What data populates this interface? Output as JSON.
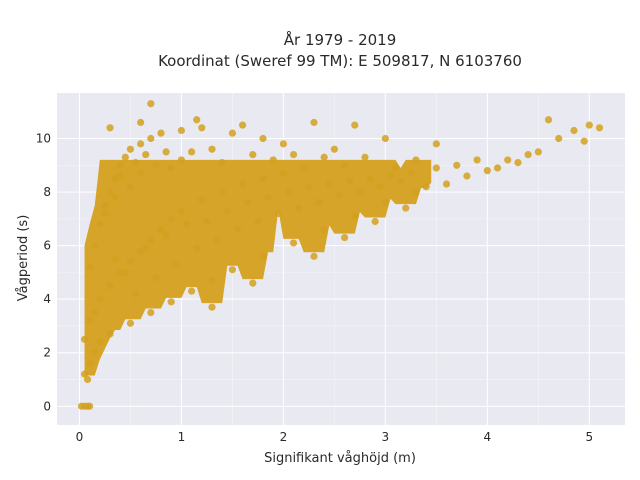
{
  "chart_data": {
    "type": "scatter",
    "title_lines": [
      "År 1979 - 2019",
      "Koordinat (Sweref 99 TM): E 509817, N 6103760"
    ],
    "xlabel": "Signifikant våghöjd (m)",
    "ylabel": "Vågperiod (s)",
    "xlim": [
      -0.22,
      5.35
    ],
    "ylim": [
      -0.7,
      11.7
    ],
    "x_ticks": [
      0,
      1,
      2,
      3,
      4,
      5
    ],
    "y_ticks": [
      0,
      2,
      4,
      6,
      8,
      10
    ],
    "grid": true,
    "legend": "none",
    "marker_color": "#d4a01e",
    "background_color": "#e9e9f1",
    "series": [
      {
        "points": [
          [
            0.02,
            0.0
          ],
          [
            0.05,
            0.0
          ],
          [
            0.08,
            0.0
          ],
          [
            0.1,
            0.0
          ],
          [
            0.05,
            1.2
          ],
          [
            0.08,
            1.0
          ],
          [
            0.1,
            1.6
          ],
          [
            0.15,
            2.0
          ],
          [
            0.2,
            2.4
          ],
          [
            0.3,
            2.7
          ],
          [
            0.5,
            3.1
          ],
          [
            0.7,
            3.5
          ],
          [
            0.9,
            3.9
          ],
          [
            1.1,
            4.3
          ],
          [
            1.3,
            4.7
          ],
          [
            1.5,
            5.1
          ],
          [
            1.8,
            5.6
          ],
          [
            2.1,
            6.1
          ],
          [
            2.4,
            6.6
          ],
          [
            2.7,
            7.1
          ],
          [
            3.0,
            7.6
          ],
          [
            3.3,
            8.0
          ],
          [
            0.05,
            2.5
          ],
          [
            0.1,
            3.2
          ],
          [
            0.15,
            3.5
          ],
          [
            0.2,
            4.0
          ],
          [
            0.3,
            4.5
          ],
          [
            0.4,
            5.0
          ],
          [
            0.5,
            5.4
          ],
          [
            0.6,
            5.8
          ],
          [
            0.7,
            6.2
          ],
          [
            0.8,
            6.6
          ],
          [
            0.9,
            7.0
          ],
          [
            1.0,
            7.3
          ],
          [
            1.2,
            7.7
          ],
          [
            1.4,
            8.0
          ],
          [
            1.6,
            8.3
          ],
          [
            1.8,
            8.5
          ],
          [
            2.0,
            8.7
          ],
          [
            2.2,
            8.9
          ],
          [
            0.1,
            5.2
          ],
          [
            0.15,
            6.0
          ],
          [
            0.2,
            6.8
          ],
          [
            0.25,
            7.5
          ],
          [
            0.3,
            8.0
          ],
          [
            0.35,
            8.5
          ],
          [
            0.4,
            9.0
          ],
          [
            0.45,
            9.3
          ],
          [
            0.5,
            9.6
          ],
          [
            0.6,
            9.8
          ],
          [
            0.7,
            10.0
          ],
          [
            0.8,
            10.2
          ],
          [
            1.0,
            10.3
          ],
          [
            1.2,
            10.4
          ],
          [
            1.5,
            10.2
          ],
          [
            1.8,
            10.0
          ],
          [
            2.0,
            9.8
          ],
          [
            2.5,
            9.6
          ],
          [
            0.3,
            10.4
          ],
          [
            0.6,
            10.6
          ],
          [
            0.7,
            11.3
          ],
          [
            1.15,
            10.7
          ],
          [
            1.6,
            10.5
          ],
          [
            2.3,
            10.6
          ],
          [
            2.7,
            10.5
          ],
          [
            3.0,
            10.0
          ],
          [
            3.5,
            9.8
          ],
          [
            3.4,
            8.2
          ],
          [
            3.6,
            8.3
          ],
          [
            3.8,
            8.6
          ],
          [
            4.0,
            8.8
          ],
          [
            4.2,
            9.2
          ],
          [
            4.5,
            9.5
          ],
          [
            4.7,
            10.0
          ],
          [
            4.85,
            10.3
          ],
          [
            5.0,
            10.5
          ],
          [
            5.1,
            10.4
          ],
          [
            4.95,
            9.9
          ],
          [
            4.6,
            10.7
          ],
          [
            4.4,
            9.4
          ],
          [
            3.1,
            8.9
          ],
          [
            3.3,
            9.2
          ],
          [
            3.5,
            8.9
          ],
          [
            3.7,
            9.0
          ],
          [
            3.9,
            9.2
          ],
          [
            4.1,
            8.9
          ],
          [
            4.3,
            9.1
          ],
          [
            0.35,
            5.5
          ],
          [
            0.45,
            5.0
          ],
          [
            0.55,
            4.2
          ],
          [
            0.65,
            5.9
          ],
          [
            0.75,
            4.8
          ],
          [
            0.85,
            6.4
          ],
          [
            0.95,
            5.3
          ],
          [
            1.05,
            6.8
          ],
          [
            1.15,
            5.9
          ],
          [
            1.25,
            6.9
          ],
          [
            1.35,
            6.2
          ],
          [
            1.45,
            7.3
          ],
          [
            1.55,
            6.6
          ],
          [
            1.65,
            7.6
          ],
          [
            1.75,
            6.9
          ],
          [
            1.85,
            7.8
          ],
          [
            1.95,
            7.2
          ],
          [
            2.05,
            8.0
          ],
          [
            2.15,
            7.4
          ],
          [
            2.25,
            8.2
          ],
          [
            2.35,
            7.6
          ],
          [
            2.45,
            8.3
          ],
          [
            2.55,
            7.9
          ],
          [
            2.65,
            8.4
          ],
          [
            2.75,
            8.0
          ],
          [
            2.85,
            8.5
          ],
          [
            2.95,
            8.2
          ],
          [
            3.05,
            8.6
          ],
          [
            3.15,
            8.4
          ],
          [
            3.25,
            8.7
          ],
          [
            1.3,
            3.7
          ],
          [
            1.7,
            4.6
          ],
          [
            2.3,
            5.6
          ],
          [
            2.6,
            6.3
          ],
          [
            2.9,
            6.9
          ],
          [
            3.2,
            7.4
          ],
          [
            0.25,
            7.2
          ],
          [
            0.35,
            7.8
          ],
          [
            0.4,
            8.6
          ],
          [
            0.5,
            8.2
          ],
          [
            0.55,
            9.1
          ],
          [
            0.6,
            8.7
          ],
          [
            0.65,
            9.4
          ],
          [
            0.75,
            9.0
          ],
          [
            0.85,
            9.5
          ],
          [
            0.9,
            8.9
          ],
          [
            1.0,
            9.2
          ],
          [
            1.1,
            9.5
          ],
          [
            1.3,
            9.6
          ],
          [
            1.4,
            9.1
          ],
          [
            1.7,
            9.4
          ],
          [
            1.9,
            9.2
          ],
          [
            2.1,
            9.4
          ],
          [
            2.4,
            9.3
          ],
          [
            2.6,
            9.0
          ],
          [
            2.8,
            9.3
          ]
        ]
      }
    ]
  }
}
